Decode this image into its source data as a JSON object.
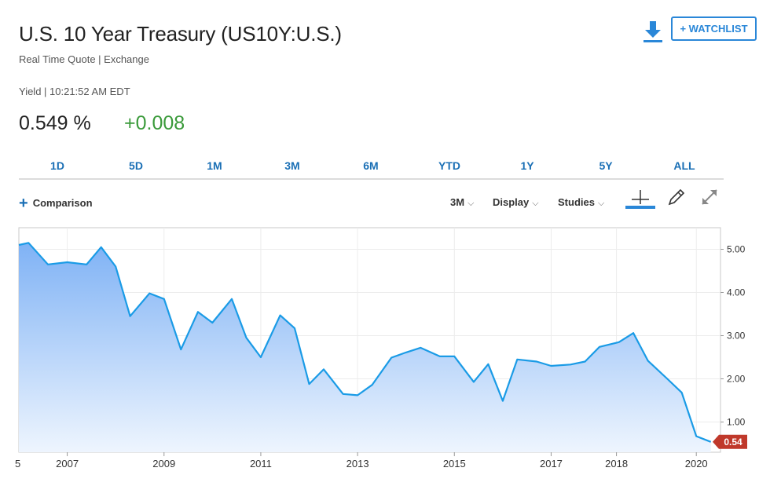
{
  "header": {
    "title": "U.S. 10 Year Treasury (US10Y:U.S.)",
    "subtitle": "Real Time Quote | Exchange",
    "yield_meta": "Yield | 10:21:52 AM EDT",
    "price": "0.549 %",
    "change": "+0.008",
    "watchlist_label": "+ WATCHLIST",
    "download_icon": "download-icon"
  },
  "range_tabs": [
    "1D",
    "5D",
    "1M",
    "3M",
    "6M",
    "YTD",
    "1Y",
    "5Y",
    "ALL"
  ],
  "toolbar": {
    "comparison_label": "Comparison",
    "interval_label": "3M",
    "display_label": "Display",
    "studies_label": "Studies"
  },
  "colors": {
    "line": "#1a9be6",
    "fill_top": "#7fb2f5",
    "fill_bottom": "#eef5fe",
    "positive": "#3a9a3a",
    "accent": "#2a87d8",
    "last_tag": "#c0392b"
  },
  "chart_data": {
    "type": "area",
    "x": [
      2006.0,
      2006.2,
      2006.6,
      2007.0,
      2007.4,
      2007.7,
      2008.0,
      2008.3,
      2008.7,
      2009.0,
      2009.35,
      2009.7,
      2010.0,
      2010.4,
      2010.7,
      2011.0,
      2011.4,
      2011.7,
      2012.0,
      2012.3,
      2012.7,
      2013.0,
      2013.3,
      2013.7,
      2014.0,
      2014.3,
      2014.7,
      2015.0,
      2015.4,
      2015.7,
      2016.0,
      2016.3,
      2016.7,
      2017.0,
      2017.4,
      2017.7,
      2018.0,
      2018.4,
      2018.7,
      2019.0,
      2019.4,
      2019.7,
      2020.0,
      2020.3
    ],
    "y": [
      5.1,
      5.15,
      4.65,
      4.7,
      4.65,
      5.05,
      4.6,
      3.45,
      3.98,
      3.85,
      2.68,
      3.55,
      3.3,
      3.85,
      2.95,
      2.5,
      3.47,
      3.17,
      1.88,
      2.22,
      1.65,
      1.62,
      1.86,
      2.49,
      2.61,
      2.72,
      2.52,
      2.52,
      1.93,
      2.34,
      1.49,
      2.45,
      2.4,
      2.3,
      2.33,
      2.4,
      2.74,
      2.85,
      3.06,
      2.42,
      2.0,
      1.68,
      0.67,
      0.54
    ],
    "x_ticks": [
      "2007",
      "2009",
      "2011",
      "2013",
      "2015",
      "2017",
      "2018",
      "2020"
    ],
    "y_ticks": [
      "5.00",
      "4.00",
      "3.00",
      "2.00",
      "1.00"
    ],
    "ylim": [
      0.3,
      5.5
    ],
    "grid": true,
    "last_value_label": "0.54",
    "left_edge_tick": "5"
  }
}
